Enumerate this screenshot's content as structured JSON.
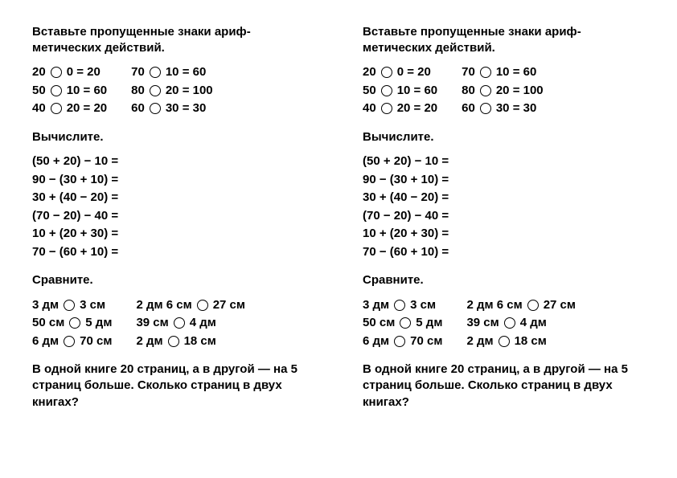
{
  "headings": {
    "h1": "Вставьте пропущенные знаки ариф­метических действий.",
    "h2": "Вычислите.",
    "h3": "Сравните.",
    "h4": "В одной книге 20 страниц, а в дру­гой — на 5 страниц больше. Сколько страниц в двух книгах?"
  },
  "section1": {
    "colA": [
      {
        "a": "20",
        "b": "0",
        "r": "20"
      },
      {
        "a": "50",
        "b": "10",
        "r": "60"
      },
      {
        "a": "40",
        "b": "20",
        "r": "20"
      }
    ],
    "colB": [
      {
        "a": "70",
        "b": "10",
        "r": "60"
      },
      {
        "a": "80",
        "b": "20",
        "r": "100"
      },
      {
        "a": "60",
        "b": "30",
        "r": "30"
      }
    ]
  },
  "section2": [
    "(50 + 20) − 10 =",
    "90 − (30 + 10) =",
    "30 + (40 − 20) =",
    "(70 − 20) − 40 =",
    "10 + (20 + 30) =",
    "70 − (60 + 10) ="
  ],
  "section3": {
    "colA": [
      {
        "l": "3 дм",
        "r": "3 см"
      },
      {
        "l": "50 см",
        "r": "5 дм"
      },
      {
        "l": "6 дм",
        "r": "70 см"
      }
    ],
    "colB": [
      {
        "l": "2 дм 6 см",
        "r": "27 см"
      },
      {
        "l": "39 см",
        "r": "4 дм"
      },
      {
        "l": "2 дм",
        "r": "18 см"
      }
    ]
  },
  "colors": {
    "background": "#ffffff",
    "text": "#000000",
    "circle_border": "#000000"
  },
  "typography": {
    "heading_fontsize": 15,
    "body_fontsize": 15,
    "fontweight": "bold",
    "font_family": "Arial"
  }
}
